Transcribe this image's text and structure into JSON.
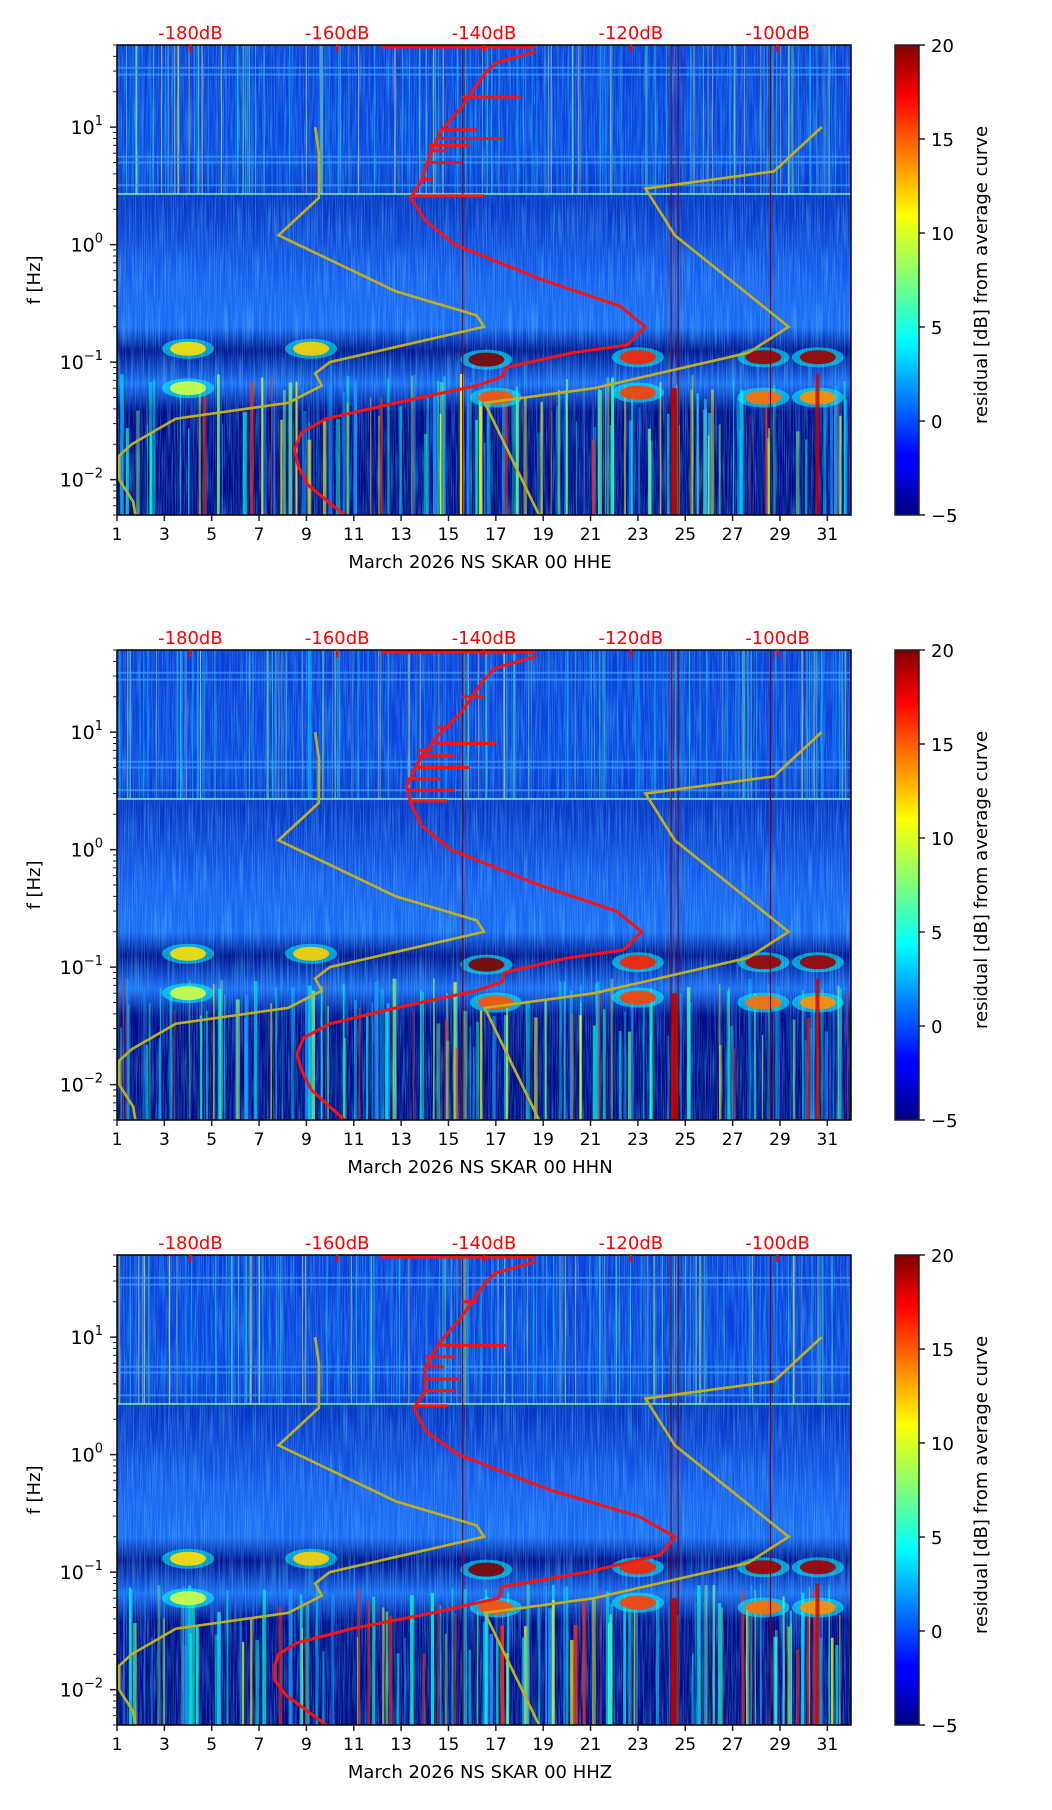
{
  "chart_data": {
    "type": "heatmap",
    "figure_description": "Monthly spectrogram residuals with PSD percentile overlays, three components",
    "colorbar": {
      "label": "residual [dB] from average curve",
      "range": [
        -5,
        20
      ],
      "ticks": [
        -5,
        0,
        5,
        10,
        15,
        20
      ],
      "tick_labels": [
        "−5",
        "0",
        "5",
        "10",
        "15",
        "20"
      ],
      "colormap": "jet"
    },
    "x_axis": {
      "range": [
        1,
        32
      ],
      "ticks": [
        1,
        3,
        5,
        7,
        9,
        11,
        13,
        15,
        17,
        19,
        21,
        23,
        25,
        27,
        29,
        31
      ],
      "tick_labels": [
        "1",
        "3",
        "5",
        "7",
        "9",
        "11",
        "13",
        "15",
        "17",
        "19",
        "21",
        "23",
        "25",
        "27",
        "29",
        "31"
      ],
      "scale": "linear",
      "unit": "day of month"
    },
    "y_axis": {
      "label": "f [Hz]",
      "range": [
        0.005,
        50
      ],
      "scale": "log",
      "ticks": [
        0.01,
        0.1,
        1,
        10
      ],
      "tick_labels": [
        {
          "base": "10",
          "exp": "−2"
        },
        {
          "base": "10",
          "exp": "−1"
        },
        {
          "base": "10",
          "exp": "0"
        },
        {
          "base": "10",
          "exp": "1"
        }
      ]
    },
    "top_axis": {
      "range_db": [
        -190,
        -90
      ],
      "ticks": [
        -180,
        -160,
        -140,
        -120,
        -100
      ],
      "tick_labels": [
        "-180dB",
        "-160dB",
        "-140dB",
        "-120dB",
        "-100dB"
      ],
      "color": "#ff0000"
    },
    "overlay_colors": {
      "psd_curve": "#ff1010",
      "noise_model": "#c0b020",
      "guide": "#8b0000"
    },
    "noise_model_curve": {
      "name": "noise model",
      "points_db_vs_freq": [
        [
          -187.5,
          0.005
        ],
        [
          -187.8,
          0.0065
        ],
        [
          -189.7,
          0.01
        ],
        [
          -189.7,
          0.016
        ],
        [
          -188.0,
          0.02
        ],
        [
          -182.0,
          0.033
        ],
        [
          -166.7,
          0.045
        ],
        [
          -162.1,
          0.063
        ],
        [
          -163.0,
          0.08
        ],
        [
          -161.0,
          0.1
        ],
        [
          -140.0,
          0.2
        ],
        [
          -141.0,
          0.25
        ],
        [
          -152.0,
          0.4
        ],
        [
          -168.0,
          1.2
        ],
        [
          -162.5,
          2.5
        ],
        [
          -162.5,
          6.0
        ],
        [
          -163.0,
          10.0
        ]
      ],
      "high_points_db_vs_freq": [
        [
          -132.5,
          0.005
        ],
        [
          -139.9,
          0.045
        ],
        [
          -125.0,
          0.06
        ],
        [
          -104.0,
          0.12
        ],
        [
          -98.5,
          0.2
        ],
        [
          -114.0,
          1.2
        ],
        [
          -118.0,
          3.0
        ],
        [
          -100.5,
          4.2
        ],
        [
          -94.0,
          10.0
        ]
      ]
    },
    "panels": [
      {
        "xlabel": "March 2026 NS SKAR 00 HHE",
        "psd_curve": {
          "name": "median PSD",
          "points_db_vs_freq": [
            [
              -159.0,
              0.005
            ],
            [
              -164.0,
              0.009
            ],
            [
              -165.3,
              0.013
            ],
            [
              -165.8,
              0.018
            ],
            [
              -164.9,
              0.025
            ],
            [
              -161.5,
              0.033
            ],
            [
              -152.0,
              0.045
            ],
            [
              -141.0,
              0.063
            ],
            [
              -137.5,
              0.075
            ],
            [
              -137.0,
              0.09
            ],
            [
              -128.0,
              0.12
            ],
            [
              -120.5,
              0.14
            ],
            [
              -118.0,
              0.2
            ],
            [
              -121.5,
              0.3
            ],
            [
              -132.0,
              0.5
            ],
            [
              -144.0,
              1.0
            ],
            [
              -148.0,
              1.6
            ],
            [
              -150.0,
              2.5
            ],
            [
              -148.5,
              3.5
            ],
            [
              -147.5,
              5.5
            ],
            [
              -146.0,
              9.0
            ],
            [
              -143.0,
              15.0
            ],
            [
              -140.0,
              28.0
            ],
            [
              -138.5,
              35.0
            ],
            [
              -133.0,
              44.0
            ]
          ],
          "spikes_freq_hz": [
            2.6,
            3.6,
            5.0,
            6.3,
            7.0,
            8.0,
            9.5,
            18.0
          ],
          "spike_db": [
            -140.0,
            -147.0,
            -143.0,
            -145.0,
            -142.0,
            -137.5,
            -141.0,
            -135.0
          ]
        },
        "psd_high_extension_db": -154.0
      },
      {
        "xlabel": "March 2026 NS SKAR 00 HHN",
        "psd_curve": {
          "name": "median PSD",
          "points_db_vs_freq": [
            [
              -159.0,
              0.005
            ],
            [
              -163.5,
              0.009
            ],
            [
              -164.8,
              0.013
            ],
            [
              -165.5,
              0.018
            ],
            [
              -164.6,
              0.025
            ],
            [
              -161.0,
              0.033
            ],
            [
              -152.0,
              0.045
            ],
            [
              -141.0,
              0.063
            ],
            [
              -137.5,
              0.075
            ],
            [
              -137.2,
              0.09
            ],
            [
              -128.5,
              0.12
            ],
            [
              -121.0,
              0.14
            ],
            [
              -118.5,
              0.2
            ],
            [
              -122.0,
              0.3
            ],
            [
              -132.5,
              0.5
            ],
            [
              -144.5,
              1.0
            ],
            [
              -148.5,
              1.6
            ],
            [
              -150.0,
              2.5
            ],
            [
              -150.5,
              3.5
            ],
            [
              -149.0,
              5.5
            ],
            [
              -146.5,
              9.0
            ],
            [
              -143.0,
              15.0
            ],
            [
              -140.0,
              28.0
            ],
            [
              -138.5,
              35.0
            ],
            [
              -133.0,
              44.0
            ]
          ],
          "spikes_freq_hz": [
            2.6,
            3.2,
            4.0,
            5.0,
            6.3,
            7.0,
            8.0,
            11.0,
            20.0
          ],
          "spike_db": [
            -145.0,
            -144.0,
            -146.0,
            -142.0,
            -144.0,
            -147.0,
            -138.5,
            -144.5,
            -140.0
          ]
        },
        "psd_high_extension_db": -154.0
      },
      {
        "xlabel": "March 2026 NS SKAR 00 HHZ",
        "psd_curve": {
          "name": "median PSD",
          "points_db_vs_freq": [
            [
              -161.5,
              0.005
            ],
            [
              -167.0,
              0.009
            ],
            [
              -168.5,
              0.012
            ],
            [
              -168.5,
              0.016
            ],
            [
              -168.0,
              0.02
            ],
            [
              -165.5,
              0.025
            ],
            [
              -158.0,
              0.033
            ],
            [
              -147.0,
              0.045
            ],
            [
              -138.0,
              0.06
            ],
            [
              -137.5,
              0.075
            ],
            [
              -126.0,
              0.1
            ],
            [
              -116.0,
              0.14
            ],
            [
              -114.0,
              0.2
            ],
            [
              -119.0,
              0.3
            ],
            [
              -131.0,
              0.5
            ],
            [
              -143.5,
              1.0
            ],
            [
              -148.0,
              1.6
            ],
            [
              -149.5,
              2.5
            ],
            [
              -148.0,
              3.5
            ],
            [
              -148.0,
              5.5
            ],
            [
              -146.0,
              9.0
            ],
            [
              -143.0,
              15.0
            ],
            [
              -140.0,
              28.0
            ],
            [
              -138.5,
              35.0
            ],
            [
              -133.0,
              44.0
            ]
          ],
          "spikes_freq_hz": [
            2.6,
            3.5,
            4.4,
            5.6,
            6.8,
            8.5,
            20.0
          ],
          "spike_db": [
            -145.0,
            -144.0,
            -143.5,
            -145.5,
            -144.0,
            -137.0,
            -141.0
          ]
        },
        "psd_high_extension_db": -154.0
      }
    ]
  }
}
